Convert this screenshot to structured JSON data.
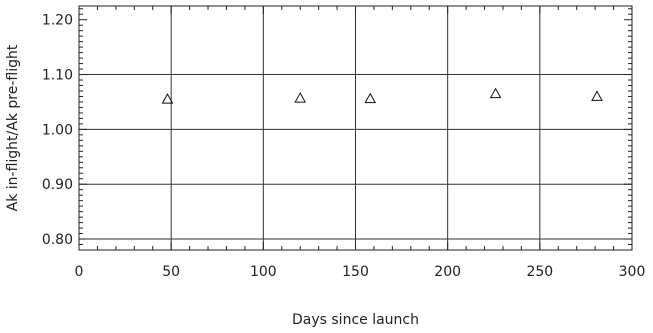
{
  "chart_data": {
    "type": "scatter",
    "title": "",
    "xlabel": "Days since launch",
    "ylabel": "Ak in-flight/Ak pre-flight",
    "xlim": [
      0,
      300
    ],
    "ylim": [
      0.78,
      1.225
    ],
    "x_ticks": [
      0,
      50,
      100,
      150,
      200,
      250,
      300
    ],
    "x_tick_labels": [
      "0",
      "50",
      "100",
      "150",
      "200",
      "250",
      "300"
    ],
    "y_ticks": [
      0.8,
      0.9,
      1.0,
      1.1,
      1.2
    ],
    "y_tick_labels": [
      "0.80",
      "0.90",
      "1.00",
      "1.10",
      "1.20"
    ],
    "grid": true,
    "marker": "triangle-open",
    "series": [
      {
        "x": [
          48,
          120,
          158,
          226,
          281
        ],
        "y": [
          1.056,
          1.058,
          1.057,
          1.066,
          1.061
        ]
      }
    ]
  }
}
